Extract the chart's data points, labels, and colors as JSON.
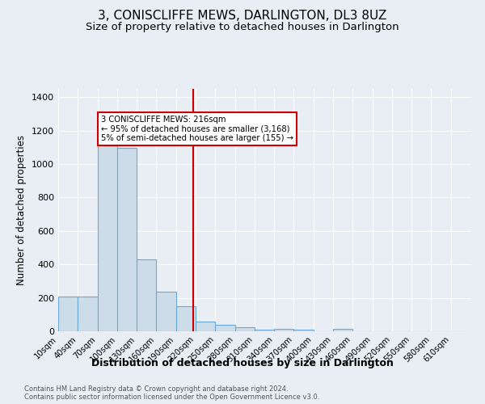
{
  "title": "3, CONISCLIFFE MEWS, DARLINGTON, DL3 8UZ",
  "subtitle": "Size of property relative to detached houses in Darlington",
  "xlabel": "Distribution of detached houses by size in Darlington",
  "ylabel": "Number of detached properties",
  "footer_line1": "Contains HM Land Registry data © Crown copyright and database right 2024.",
  "footer_line2": "Contains public sector information licensed under the Open Government Licence v3.0.",
  "bar_labels": [
    "10sqm",
    "40sqm",
    "70sqm",
    "100sqm",
    "130sqm",
    "160sqm",
    "190sqm",
    "220sqm",
    "250sqm",
    "280sqm",
    "310sqm",
    "340sqm",
    "370sqm",
    "400sqm",
    "430sqm",
    "460sqm",
    "490sqm",
    "520sqm",
    "550sqm",
    "580sqm",
    "610sqm"
  ],
  "bar_values": [
    210,
    210,
    1130,
    1095,
    430,
    235,
    150,
    60,
    40,
    25,
    12,
    15,
    12,
    0,
    15,
    0,
    0,
    0,
    0,
    0,
    0
  ],
  "bar_color": "#ccdce8",
  "bar_edge_color": "#6aaad4",
  "vline_x": 216,
  "vline_color": "#cc0000",
  "annotation_text": "3 CONISCLIFFE MEWS: 216sqm\n← 95% of detached houses are smaller (3,168)\n5% of semi-detached houses are larger (155) →",
  "annotation_box_color": "#ffffff",
  "annotation_box_edge": "#cc0000",
  "ylim": [
    0,
    1450
  ],
  "bg_color": "#e8eef4",
  "plot_bg_color": "#e8eef4",
  "grid_color": "#ffffff",
  "title_fontsize": 11,
  "subtitle_fontsize": 9.5,
  "xlabel_fontsize": 9,
  "ylabel_fontsize": 8.5
}
